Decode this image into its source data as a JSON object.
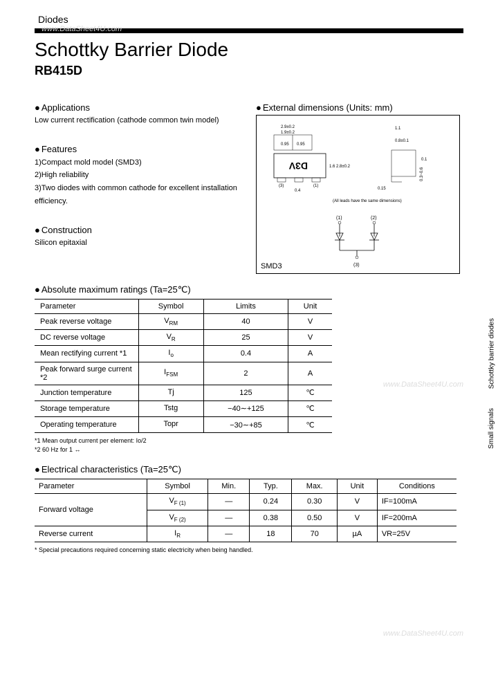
{
  "header": {
    "category": "Diodes",
    "title": "Schottky Barrier Diode",
    "part": "RB415D"
  },
  "watermarks": {
    "w1": "www.DataSheet4U.com",
    "w2": "www.DataSheet4U.com",
    "w3": "www.DataSheet4U.com"
  },
  "sideLabels": {
    "s1": "Schottky barrier diodes",
    "s2": "Small signals"
  },
  "applications": {
    "heading": "Applications",
    "text": "Low current rectification (cathode common twin model)"
  },
  "features": {
    "heading": "Features",
    "items": [
      "1)Compact mold model (SMD3)",
      "2)High reliability",
      "3)Two diodes with common cathode for excellent installation efficiency."
    ]
  },
  "construction": {
    "heading": "Construction",
    "text": "Silicon epitaxial"
  },
  "dimensions": {
    "heading": "External dimensions (Units: mm)",
    "pkg": "SMD3",
    "note": "(All leads have the same dimensions)",
    "dims": {
      "d1": "2.9±0.2",
      "d2": "1.9±0.2",
      "d3": "0.95",
      "d4": "0.95",
      "d5": "1.6",
      "d6": "0.4",
      "d7": "2.8±0.2",
      "d8": "1.1",
      "d9": "0.8±0.1",
      "d10": "0.1",
      "d11": "0.15",
      "d12": "0.3~0.6",
      "mark": "D3V",
      "p1": "(1)",
      "p2": "(2)",
      "p3": "(3)",
      "t1": "+0.2",
      "t2": "-0.1",
      "t3": "+0.2",
      "t4": "-0.1",
      "t5": "+0.1",
      "t6": "-0.05",
      "t7": "+0.1",
      "t8": "-0.05"
    }
  },
  "ratings": {
    "heading": "Absolute maximum ratings (Ta=25℃)",
    "cols": [
      "Parameter",
      "Symbol",
      "Limits",
      "Unit"
    ],
    "rows": [
      {
        "p": "Peak reverse voltage",
        "s": "V",
        "sub": "RM",
        "l": "40",
        "u": "V"
      },
      {
        "p": "DC reverse voltage",
        "s": "V",
        "sub": "R",
        "l": "25",
        "u": "V"
      },
      {
        "p": "Mean rectifying current *1",
        "s": "I",
        "sub": "o",
        "l": "0.4",
        "u": "A"
      },
      {
        "p": "Peak forward surge current *2",
        "s": "I",
        "sub": "FSM",
        "l": "2",
        "u": "A"
      },
      {
        "p": "Junction temperature",
        "s": "Tj",
        "sub": "",
        "l": "125",
        "u": "℃"
      },
      {
        "p": "Storage temperature",
        "s": "Tstg",
        "sub": "",
        "l": "−40∼+125",
        "u": "℃"
      },
      {
        "p": "Operating temperature",
        "s": "Topr",
        "sub": "",
        "l": "−30∼+85",
        "u": "℃"
      }
    ],
    "notes": [
      "*1 Mean output current per element: Io/2",
      "*2 60 Hz for 1 ↔"
    ]
  },
  "elec": {
    "heading": "Electrical characteristics (Ta=25℃)",
    "cols": [
      "Parameter",
      "Symbol",
      "Min.",
      "Typ.",
      "Max.",
      "Unit",
      "Conditions"
    ],
    "rows": [
      {
        "p": "Forward voltage",
        "s": "V",
        "sub": "F (1)",
        "min": "—",
        "typ": "0.24",
        "max": "0.30",
        "u": "V",
        "c": "IF=100mA",
        "rowspan": 2
      },
      {
        "p": "",
        "s": "V",
        "sub": "F (2)",
        "min": "—",
        "typ": "0.38",
        "max": "0.50",
        "u": "V",
        "c": "IF=200mA"
      },
      {
        "p": "Reverse current",
        "s": "I",
        "sub": "R",
        "min": "—",
        "typ": "18",
        "max": "70",
        "u": "µA",
        "c": "VR=25V"
      }
    ],
    "note": "* Special precautions required concerning static electricity when being handled."
  }
}
